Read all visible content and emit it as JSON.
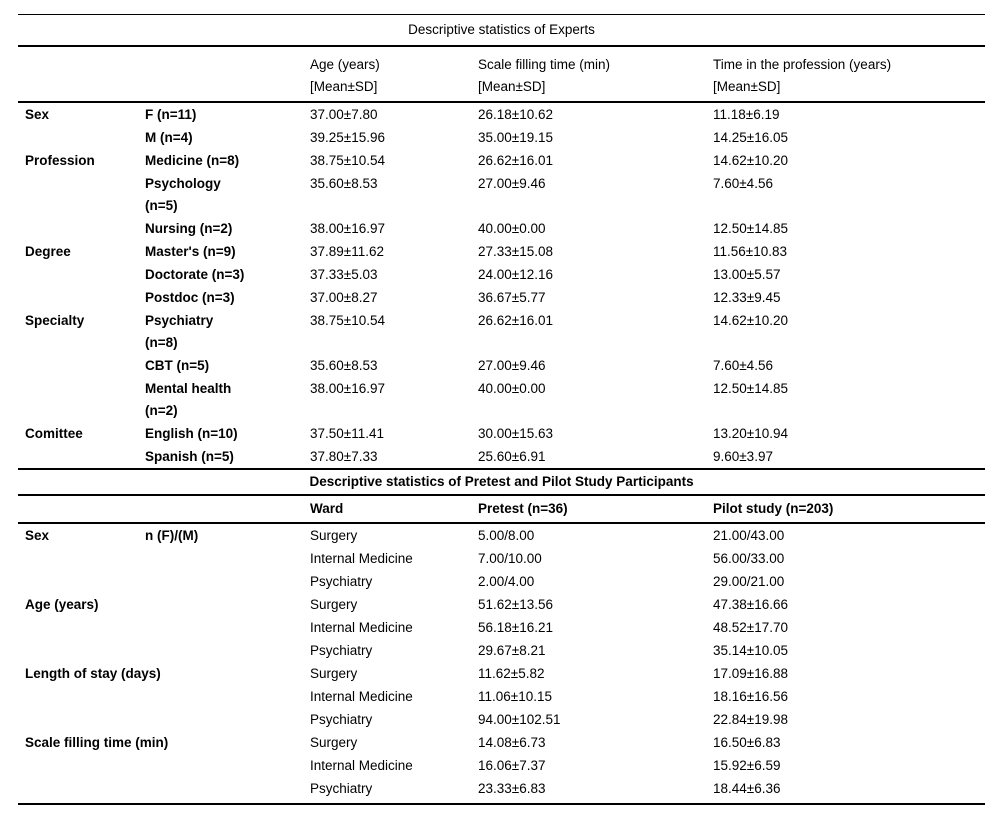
{
  "page": {
    "background": "#ffffff",
    "text_color": "#000000",
    "rule_color": "#000000"
  },
  "experts_table": {
    "title": "Descriptive statistics of Experts",
    "headers": [
      "",
      "",
      "Age (years)\n[Mean±SD]",
      "Scale filling time (min)\n[Mean±SD]",
      "Time in the profession (years)\n[Mean±SD]"
    ],
    "rows": [
      [
        "Sex",
        "F (n=11)",
        "37.00±7.80",
        "26.18±10.62",
        "11.18±6.19"
      ],
      [
        "",
        "M (n=4)",
        "39.25±15.96",
        "35.00±19.15",
        "14.25±16.05"
      ],
      [
        "Profession",
        "Medicine (n=8)",
        "38.75±10.54",
        "26.62±16.01",
        "14.62±10.20"
      ],
      [
        "",
        "Psychology\n(n=5)",
        "35.60±8.53",
        "27.00±9.46",
        "7.60±4.56"
      ],
      [
        "",
        "Nursing (n=2)",
        "38.00±16.97",
        "40.00±0.00",
        "12.50±14.85"
      ],
      [
        "Degree",
        "Master's (n=9)",
        "37.89±11.62",
        "27.33±15.08",
        "11.56±10.83"
      ],
      [
        "",
        "Doctorate (n=3)",
        "37.33±5.03",
        "24.00±12.16",
        "13.00±5.57"
      ],
      [
        "",
        "Postdoc (n=3)",
        "37.00±8.27",
        "36.67±5.77",
        "12.33±9.45"
      ],
      [
        "Specialty",
        "Psychiatry\n(n=8)",
        "38.75±10.54",
        "26.62±16.01",
        "14.62±10.20"
      ],
      [
        "",
        "CBT (n=5)",
        "35.60±8.53",
        "27.00±9.46",
        "7.60±4.56"
      ],
      [
        "",
        "Mental health\n(n=2)",
        "38.00±16.97",
        "40.00±0.00",
        "12.50±14.85"
      ],
      [
        "Comittee",
        "English (n=10)",
        "37.50±11.41",
        "30.00±15.63",
        "13.20±10.94"
      ],
      [
        "",
        "Spanish (n=5)",
        "37.80±7.33",
        "25.60±6.91",
        "9.60±3.97"
      ]
    ]
  },
  "pretest_pilot_table": {
    "title": "Descriptive statistics of Pretest and Pilot Study Participants",
    "headers": [
      "",
      "",
      "Ward",
      "Pretest (n=36)",
      "Pilot study (n=203)"
    ],
    "rows": [
      [
        "Sex",
        "n (F)/(M)",
        "Surgery",
        "5.00/8.00",
        "21.00/43.00"
      ],
      [
        "",
        "",
        "Internal Medicine",
        "7.00/10.00",
        "56.00/33.00"
      ],
      [
        "",
        "",
        "Psychiatry",
        "2.00/4.00",
        "29.00/21.00"
      ],
      [
        "Age (years)",
        "",
        "Surgery",
        "51.62±13.56",
        "47.38±16.66"
      ],
      [
        "",
        "",
        "Internal Medicine",
        "56.18±16.21",
        "48.52±17.70"
      ],
      [
        "",
        "",
        "Psychiatry",
        "29.67±8.21",
        "35.14±10.05"
      ],
      [
        "Length of stay (days)",
        "",
        "Surgery",
        "11.62±5.82",
        "17.09±16.88"
      ],
      [
        "",
        "",
        "Internal Medicine",
        "11.06±10.15",
        "18.16±16.56"
      ],
      [
        "",
        "",
        "Psychiatry",
        "94.00±102.51",
        "22.84±19.98"
      ],
      [
        "Scale filling time (min)",
        "",
        "Surgery",
        "14.08±6.73",
        "16.50±6.83"
      ],
      [
        "",
        "",
        "Internal Medicine",
        "16.06±7.37",
        "15.92±6.59"
      ],
      [
        "",
        "",
        "Psychiatry",
        "23.33±6.83",
        "18.44±6.36"
      ]
    ]
  }
}
